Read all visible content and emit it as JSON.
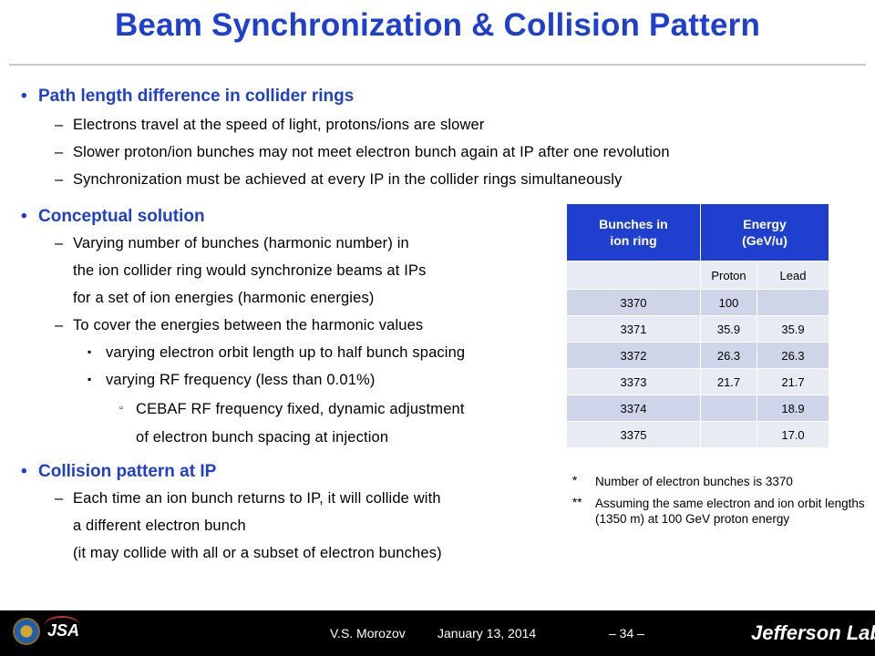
{
  "slide": {
    "title": "Beam Synchronization & Collision Pattern"
  },
  "content": {
    "bullet_mark": "•",
    "dash_mark": "–",
    "square_mark": "▪",
    "hollow_mark": "▫",
    "sections": [
      {
        "heading": "Path length difference in collider rings",
        "lines": [
          "Electrons travel at the speed of light, protons/ions are slower",
          "Slower proton/ion bunches may not meet electron bunch again at IP after one revolution",
          "Synchronization must be achieved at every IP in the collider rings simultaneously"
        ]
      },
      {
        "heading": "Conceptual solution",
        "lines": [
          "Varying number of bunches (harmonic number) in",
          "the ion collider ring would synchronize beams at IPs",
          "for a set of  ion energies (harmonic energies)",
          "To cover the energies between the harmonic values",
          "varying electron orbit length up to half bunch spacing",
          "varying RF frequency (less than 0.01%)",
          "CEBAF RF frequency fixed, dynamic adjustment",
          "of electron bunch spacing at injection"
        ]
      },
      {
        "heading": "Collision pattern at IP",
        "lines": [
          "Each time an ion bunch returns to IP, it will collide with",
          "a different electron bunch",
          "(it may collide with all or a subset of electron bunches)"
        ]
      }
    ]
  },
  "table": {
    "header_bunches": "Bunches in ion ring",
    "header_energy": "Energy (GeV/u)",
    "sub_proton": "Proton",
    "sub_lead": "Lead",
    "rows": [
      {
        "bunches": "3370",
        "proton": "100",
        "lead": ""
      },
      {
        "bunches": "3371",
        "proton": "35.9",
        "lead": "35.9"
      },
      {
        "bunches": "3372",
        "proton": "26.3",
        "lead": "26.3"
      },
      {
        "bunches": "3373",
        "proton": "21.7",
        "lead": "21.7"
      },
      {
        "bunches": "3374",
        "proton": "",
        "lead": "18.9"
      },
      {
        "bunches": "3375",
        "proton": "",
        "lead": "17.0"
      }
    ]
  },
  "notes": [
    {
      "star": "*",
      "text": "Number of electron bunches is 3370"
    },
    {
      "star": "**",
      "text": "Assuming the same electron and ion orbit lengths (1350 m) at 100 GeV proton energy"
    }
  ],
  "footer": {
    "author": "V.S. Morozov",
    "date": "January 13, 2014",
    "page": "– 34 –",
    "logo_jsa": "JSA",
    "logo_jlab": "Jefferson Lab"
  }
}
